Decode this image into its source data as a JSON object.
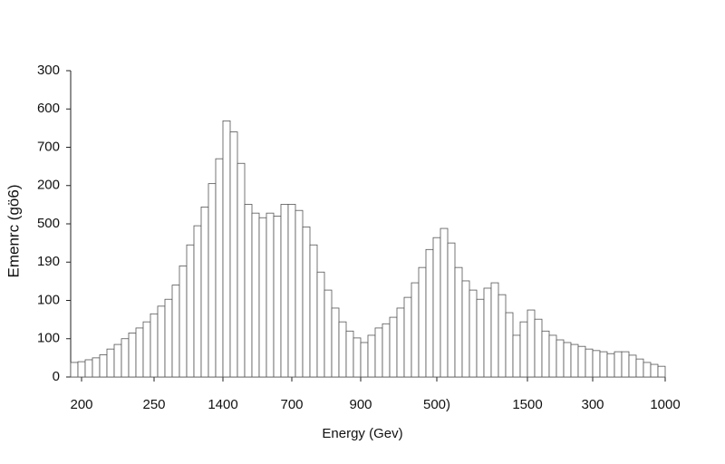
{
  "chart_data": {
    "type": "histogram",
    "x_label": "Energy (Gev)",
    "y_label": "Emenrc (gö6)",
    "bins": [
      0,
      1,
      2,
      3,
      4,
      5,
      6,
      7,
      8,
      9,
      10,
      11,
      12,
      13,
      14,
      15,
      16,
      17,
      18,
      19,
      20,
      21,
      22,
      23,
      24,
      25,
      26,
      27,
      28,
      29,
      30,
      31,
      32,
      33,
      34,
      35,
      36,
      37,
      38,
      39,
      40,
      41,
      42,
      43,
      44,
      45,
      46,
      47,
      48,
      49,
      50,
      51,
      52,
      53,
      54,
      55,
      56,
      57,
      58,
      59,
      60,
      61,
      62,
      63,
      64,
      65,
      66,
      67,
      68,
      69,
      70,
      71,
      72,
      73,
      74,
      75,
      76,
      77,
      78,
      79,
      80,
      81,
      82
    ],
    "values": [
      38,
      40,
      45,
      50,
      58,
      73,
      85,
      100,
      115,
      128,
      144,
      165,
      185,
      203,
      240,
      290,
      345,
      395,
      444,
      505,
      570,
      669,
      640,
      558,
      451,
      428,
      416,
      428,
      420,
      451,
      451,
      435,
      392,
      345,
      274,
      227,
      180,
      144,
      120,
      102,
      90,
      109,
      128,
      139,
      156,
      180,
      208,
      246,
      286,
      333,
      364,
      388,
      350,
      286,
      251,
      227,
      203,
      232,
      246,
      215,
      168,
      109,
      144,
      175,
      151,
      120,
      109,
      97,
      90,
      85,
      80,
      73,
      69,
      66,
      61,
      66,
      66,
      57,
      47,
      38,
      33,
      28
    ],
    "color": "#ffffff",
    "edge_color": "#555555",
    "xlim": [
      0,
      82
    ],
    "ylim": [
      0,
      800
    ],
    "xticks": [
      {
        "value": 1.5,
        "label": "200"
      },
      {
        "value": 11.5,
        "label": "250"
      },
      {
        "value": 21,
        "label": "1400"
      },
      {
        "value": 30.5,
        "label": "700"
      },
      {
        "value": 40,
        "label": "900"
      },
      {
        "value": 50.5,
        "label": "500)"
      },
      {
        "value": 63,
        "label": "1500"
      },
      {
        "value": 72,
        "label": "300"
      },
      {
        "value": 82,
        "label": "1000"
      }
    ],
    "yticks": [
      0,
      100,
      {
        "value": 200,
        "label": "100"
      },
      {
        "value": 300,
        "label": "190"
      },
      {
        "value": 400,
        "label": "500"
      },
      {
        "value": 500,
        "label": "200"
      },
      {
        "value": 600,
        "label": "700"
      },
      {
        "value": 700,
        "label": "600"
      },
      {
        "value": 800,
        "label": "300"
      }
    ]
  }
}
